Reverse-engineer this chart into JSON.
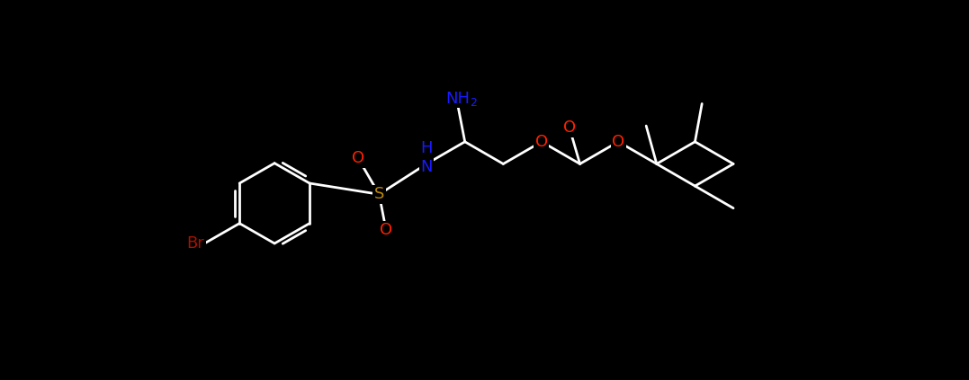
{
  "background_color": "#000000",
  "bond_color": "#ffffff",
  "atom_colors": {
    "O": "#ff2200",
    "S": "#b8860b",
    "N": "#1a1aff",
    "Br": "#aa1100",
    "C": "#ffffff",
    "H": "#ffffff"
  },
  "fig_width": 10.77,
  "fig_height": 4.23,
  "dpi": 100
}
